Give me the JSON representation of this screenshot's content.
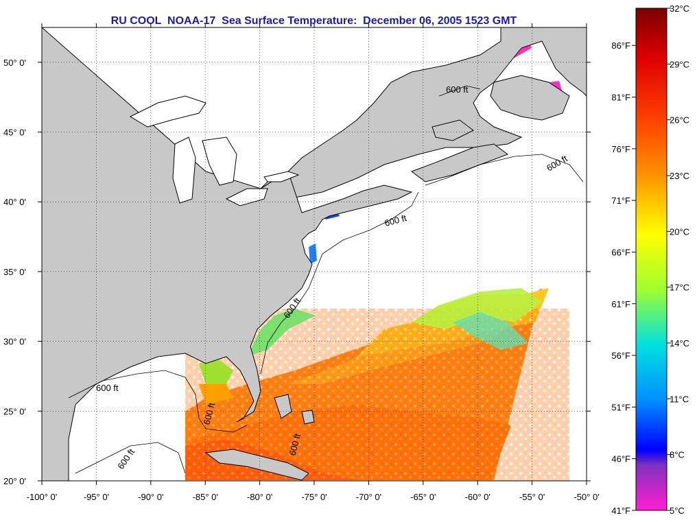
{
  "title": "RU COOL  NOAA-17  Sea Surface Temperature:  December 06, 2005 1523 GMT",
  "map": {
    "lon_range": [
      -100,
      -50
    ],
    "lat_range": [
      20,
      52.5
    ],
    "lon_ticks": [
      "-100° 0'",
      "-95° 0'",
      "-90° 0'",
      "-85° 0'",
      "-80° 0'",
      "-75° 0'",
      "-70° 0'",
      "-65° 0'",
      "-60° 0'",
      "-55° 0'",
      "-50° 0'"
    ],
    "lat_ticks": [
      "20° 0'",
      "25° 0'",
      "30° 0'",
      "35° 0'",
      "40° 0'",
      "45° 0'",
      "50° 0'"
    ],
    "depth_contour_label": "600 ft",
    "land_color": "#c8c8c8",
    "grid": "dotted"
  },
  "colorbar": {
    "celsius_labels": [
      "32°C",
      "29°C",
      "26°C",
      "23°C",
      "20°C",
      "17°C",
      "14°C",
      "11°C",
      "8°C",
      "5°C"
    ],
    "fahrenheit_labels": [
      "86°F",
      "81°F",
      "76°F",
      "71°F",
      "66°F",
      "61°F",
      "56°F",
      "51°F",
      "46°F",
      "41°F"
    ],
    "range_c": [
      5,
      32
    ]
  }
}
